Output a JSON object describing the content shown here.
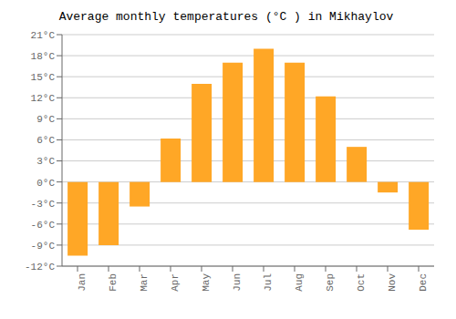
{
  "chart_data": {
    "type": "bar",
    "title": "Average monthly temperatures (°C ) in Mikhaylov",
    "categories": [
      "Jan",
      "Feb",
      "Mar",
      "Apr",
      "May",
      "Jun",
      "Jul",
      "Aug",
      "Sep",
      "Oct",
      "Nov",
      "Dec"
    ],
    "values": [
      -10.5,
      -9.0,
      -3.5,
      6.2,
      14.0,
      17.0,
      19.0,
      17.0,
      12.2,
      5.0,
      -1.5,
      -6.8
    ],
    "color": "#FFA726",
    "ylim": [
      -12,
      21
    ],
    "yticks": [
      {
        "value": -12,
        "label": "-12°C"
      },
      {
        "value": -9,
        "label": "-9°C"
      },
      {
        "value": -6,
        "label": "-6°C"
      },
      {
        "value": -3,
        "label": "-3°C"
      },
      {
        "value": 0,
        "label": "0°C"
      },
      {
        "value": 3,
        "label": "3°C"
      },
      {
        "value": 6,
        "label": "6°C"
      },
      {
        "value": 9,
        "label": "9°C"
      },
      {
        "value": 12,
        "label": "12°C"
      },
      {
        "value": 15,
        "label": "15°C"
      },
      {
        "value": 18,
        "label": "18°C"
      },
      {
        "value": 21,
        "label": "21°C"
      }
    ],
    "grid": true
  }
}
